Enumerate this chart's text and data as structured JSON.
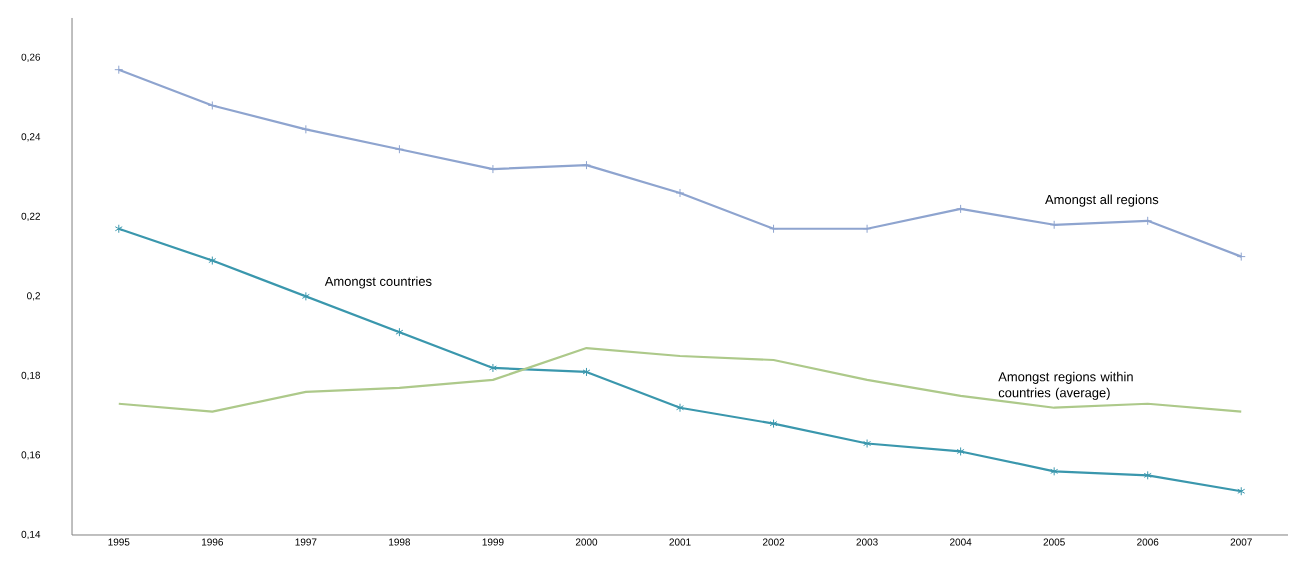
{
  "chart_data": {
    "type": "line",
    "categories": [
      "1995",
      "1996",
      "1997",
      "1998",
      "1999",
      "2000",
      "2001",
      "2002",
      "2003",
      "2004",
      "2005",
      "2006",
      "2007"
    ],
    "series": [
      {
        "name": "Amongst all regions",
        "color": "#8ea4cf",
        "marker": "cross",
        "values": [
          0.257,
          0.248,
          0.242,
          0.237,
          0.232,
          0.233,
          0.226,
          0.217,
          0.217,
          0.222,
          0.218,
          0.219,
          0.21
        ]
      },
      {
        "name": "Amongst countries",
        "color": "#3a97ad",
        "marker": "cross",
        "values": [
          0.217,
          0.209,
          0.2,
          0.191,
          0.182,
          0.181,
          0.172,
          0.168,
          0.163,
          0.161,
          0.156,
          0.155,
          0.151
        ]
      },
      {
        "name": "Amongst regions within countries (average)",
        "color": "#adc98a",
        "marker": "none",
        "values": [
          0.173,
          0.171,
          0.176,
          0.177,
          0.179,
          0.187,
          0.185,
          0.184,
          0.179,
          0.175,
          0.172,
          0.173,
          0.171
        ]
      }
    ],
    "ylim": [
      0.14,
      0.27
    ],
    "yticks": [
      {
        "value": 0.14,
        "label": "0,14"
      },
      {
        "value": 0.16,
        "label": "0,16"
      },
      {
        "value": 0.18,
        "label": "0,18"
      },
      {
        "value": 0.2,
        "label": "0,2"
      },
      {
        "value": 0.22,
        "label": "0,22"
      },
      {
        "value": 0.24,
        "label": "0,24"
      },
      {
        "value": 0.26,
        "label": "0,26"
      }
    ],
    "grid": false,
    "legend": false,
    "line_style": "solid"
  }
}
